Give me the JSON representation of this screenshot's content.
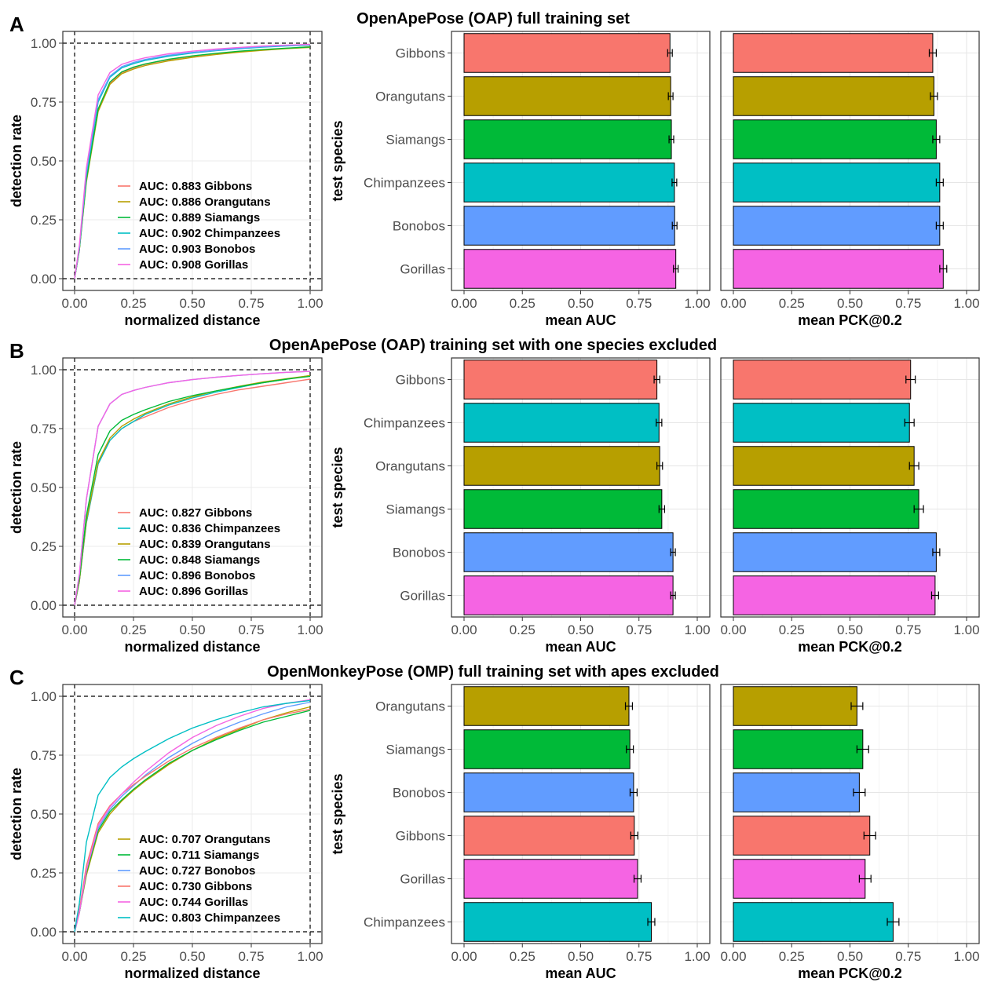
{
  "colors": {
    "Gibbons": "#F8766D",
    "Orangutans": "#B79F00",
    "Siamangs": "#00BA38",
    "Chimpanzees": "#00BFC4",
    "Bonobos": "#619CFF",
    "Gorillas": "#F564E3"
  },
  "chart_data": [
    {
      "panel": "A",
      "title": "OpenApePose (OAP) full training set",
      "type": "line",
      "xlabel": "normalized distance",
      "ylabel": "detection rate",
      "xlim": [
        0,
        1
      ],
      "ylim": [
        0,
        1
      ],
      "xticks": [
        "0.00",
        "0.25",
        "0.50",
        "0.75",
        "1.00"
      ],
      "yticks": [
        "0.00",
        "0.25",
        "0.50",
        "0.75",
        "1.00"
      ],
      "legend": [
        "AUC: 0.883 Gibbons",
        "AUC: 0.886 Orangutans",
        "AUC: 0.889 Siamangs",
        "AUC: 0.902 Chimpanzees",
        "AUC: 0.903 Bonobos",
        "AUC: 0.908 Gorillas"
      ],
      "legend_species": [
        "Gibbons",
        "Orangutans",
        "Siamangs",
        "Chimpanzees",
        "Bonobos",
        "Gorillas"
      ],
      "x": [
        0,
        0.02,
        0.05,
        0.1,
        0.15,
        0.2,
        0.25,
        0.3,
        0.4,
        0.5,
        0.6,
        0.7,
        0.8,
        0.9,
        1.0
      ],
      "series": [
        {
          "name": "Gibbons",
          "values": [
            0,
            0.12,
            0.42,
            0.72,
            0.83,
            0.875,
            0.895,
            0.91,
            0.93,
            0.945,
            0.955,
            0.965,
            0.972,
            0.978,
            0.985
          ]
        },
        {
          "name": "Orangutans",
          "values": [
            0,
            0.12,
            0.41,
            0.71,
            0.825,
            0.87,
            0.89,
            0.905,
            0.925,
            0.94,
            0.952,
            0.962,
            0.97,
            0.977,
            0.982
          ]
        },
        {
          "name": "Siamangs",
          "values": [
            0,
            0.12,
            0.42,
            0.72,
            0.835,
            0.878,
            0.898,
            0.912,
            0.932,
            0.946,
            0.957,
            0.966,
            0.973,
            0.979,
            0.984
          ]
        },
        {
          "name": "Chimpanzees",
          "values": [
            0,
            0.13,
            0.44,
            0.75,
            0.855,
            0.895,
            0.913,
            0.927,
            0.945,
            0.958,
            0.968,
            0.976,
            0.983,
            0.988,
            0.992
          ]
        },
        {
          "name": "Bonobos",
          "values": [
            0,
            0.13,
            0.45,
            0.76,
            0.86,
            0.9,
            0.918,
            0.931,
            0.949,
            0.961,
            0.97,
            0.978,
            0.985,
            0.99,
            0.994
          ]
        },
        {
          "name": "Gorillas",
          "values": [
            0,
            0.14,
            0.47,
            0.78,
            0.875,
            0.91,
            0.926,
            0.938,
            0.955,
            0.966,
            0.975,
            0.982,
            0.988,
            0.992,
            0.995
          ]
        }
      ],
      "bars": {
        "ylabel": "test species",
        "categories": [
          "Gibbons",
          "Orangutans",
          "Siamangs",
          "Chimpanzees",
          "Bonobos",
          "Gorillas"
        ],
        "auc": {
          "xlabel": "mean AUC",
          "values": [
            0.883,
            0.886,
            0.889,
            0.902,
            0.903,
            0.908
          ],
          "errors": [
            0.01,
            0.01,
            0.01,
            0.01,
            0.01,
            0.01
          ]
        },
        "pck": {
          "xlabel": "mean PCK@0.2",
          "values": [
            0.855,
            0.86,
            0.87,
            0.885,
            0.885,
            0.9
          ],
          "errors": [
            0.015,
            0.015,
            0.015,
            0.015,
            0.015,
            0.015
          ]
        },
        "xticks": [
          "0.00",
          "0.25",
          "0.50",
          "0.75",
          "1.00"
        ],
        "xlim": [
          0,
          1
        ]
      }
    },
    {
      "panel": "B",
      "title": "OpenApePose (OAP) training set with one species excluded",
      "type": "line",
      "xlabel": "normalized distance",
      "ylabel": "detection rate",
      "xlim": [
        0,
        1
      ],
      "ylim": [
        0,
        1
      ],
      "xticks": [
        "0.00",
        "0.25",
        "0.50",
        "0.75",
        "1.00"
      ],
      "yticks": [
        "0.00",
        "0.25",
        "0.50",
        "0.75",
        "1.00"
      ],
      "legend": [
        "AUC: 0.827 Gibbons",
        "AUC: 0.836 Chimpanzees",
        "AUC: 0.839 Orangutans",
        "AUC: 0.848 Siamangs",
        "AUC: 0.896 Bonobos",
        "AUC: 0.896 Gorillas"
      ],
      "legend_species": [
        "Gibbons",
        "Chimpanzees",
        "Orangutans",
        "Siamangs",
        "Bonobos",
        "Gorillas"
      ],
      "x": [
        0,
        0.02,
        0.05,
        0.1,
        0.15,
        0.2,
        0.25,
        0.3,
        0.4,
        0.5,
        0.6,
        0.7,
        0.8,
        0.9,
        1.0
      ],
      "series": [
        {
          "name": "Gibbons",
          "values": [
            0,
            0.1,
            0.35,
            0.6,
            0.7,
            0.75,
            0.78,
            0.8,
            0.84,
            0.87,
            0.895,
            0.915,
            0.93,
            0.945,
            0.96
          ]
        },
        {
          "name": "Chimpanzees",
          "values": [
            0,
            0.1,
            0.35,
            0.6,
            0.7,
            0.75,
            0.78,
            0.81,
            0.85,
            0.88,
            0.905,
            0.925,
            0.945,
            0.96,
            0.975
          ]
        },
        {
          "name": "Orangutans",
          "values": [
            0,
            0.1,
            0.36,
            0.61,
            0.71,
            0.76,
            0.79,
            0.815,
            0.855,
            0.885,
            0.91,
            0.93,
            0.948,
            0.962,
            0.975
          ]
        },
        {
          "name": "Siamangs",
          "values": [
            0,
            0.11,
            0.38,
            0.64,
            0.74,
            0.785,
            0.81,
            0.83,
            0.865,
            0.89,
            0.91,
            0.928,
            0.945,
            0.96,
            0.972
          ]
        },
        {
          "name": "Bonobos",
          "values": [
            0,
            0.13,
            0.45,
            0.76,
            0.855,
            0.895,
            0.912,
            0.925,
            0.945,
            0.958,
            0.968,
            0.976,
            0.983,
            0.989,
            0.993
          ]
        },
        {
          "name": "Gorillas",
          "values": [
            0,
            0.13,
            0.45,
            0.76,
            0.855,
            0.895,
            0.912,
            0.925,
            0.945,
            0.958,
            0.968,
            0.976,
            0.983,
            0.989,
            0.993
          ]
        }
      ],
      "bars": {
        "ylabel": "test species",
        "categories": [
          "Gibbons",
          "Chimpanzees",
          "Orangutans",
          "Siamangs",
          "Bonobos",
          "Gorillas"
        ],
        "auc": {
          "xlabel": "mean AUC",
          "values": [
            0.827,
            0.836,
            0.839,
            0.848,
            0.896,
            0.896
          ],
          "errors": [
            0.012,
            0.012,
            0.012,
            0.012,
            0.01,
            0.01
          ]
        },
        "pck": {
          "xlabel": "mean PCK@0.2",
          "values": [
            0.76,
            0.755,
            0.775,
            0.795,
            0.87,
            0.865
          ],
          "errors": [
            0.02,
            0.02,
            0.02,
            0.02,
            0.015,
            0.015
          ]
        },
        "xticks": [
          "0.00",
          "0.25",
          "0.50",
          "0.75",
          "1.00"
        ],
        "xlim": [
          0,
          1
        ]
      }
    },
    {
      "panel": "C",
      "title": "OpenMonkeyPose (OMP) full training set with apes excluded",
      "type": "line",
      "xlabel": "normalized distance",
      "ylabel": "detection rate",
      "xlim": [
        0,
        1
      ],
      "ylim": [
        0,
        1
      ],
      "xticks": [
        "0.00",
        "0.25",
        "0.50",
        "0.75",
        "1.00"
      ],
      "yticks": [
        "0.00",
        "0.25",
        "0.50",
        "0.75",
        "1.00"
      ],
      "legend": [
        "AUC: 0.707 Orangutans",
        "AUC: 0.711 Siamangs",
        "AUC: 0.727 Bonobos",
        "AUC: 0.730 Gibbons",
        "AUC: 0.744 Gorillas",
        "AUC: 0.803 Chimpanzees"
      ],
      "legend_species": [
        "Orangutans",
        "Siamangs",
        "Bonobos",
        "Gibbons",
        "Gorillas",
        "Chimpanzees"
      ],
      "x": [
        0,
        0.02,
        0.05,
        0.1,
        0.15,
        0.2,
        0.25,
        0.3,
        0.4,
        0.5,
        0.6,
        0.7,
        0.8,
        0.9,
        1.0
      ],
      "series": [
        {
          "name": "Orangutans",
          "values": [
            0,
            0.08,
            0.24,
            0.42,
            0.5,
            0.555,
            0.6,
            0.64,
            0.71,
            0.77,
            0.82,
            0.86,
            0.9,
            0.93,
            0.955
          ]
        },
        {
          "name": "Siamangs",
          "values": [
            0,
            0.08,
            0.25,
            0.43,
            0.51,
            0.56,
            0.605,
            0.645,
            0.715,
            0.77,
            0.815,
            0.855,
            0.89,
            0.915,
            0.94
          ]
        },
        {
          "name": "Bonobos",
          "values": [
            0,
            0.08,
            0.26,
            0.44,
            0.52,
            0.575,
            0.62,
            0.665,
            0.74,
            0.8,
            0.85,
            0.89,
            0.925,
            0.955,
            0.975
          ]
        },
        {
          "name": "Gibbons",
          "values": [
            0,
            0.09,
            0.28,
            0.46,
            0.535,
            0.585,
            0.625,
            0.66,
            0.725,
            0.78,
            0.825,
            0.865,
            0.9,
            0.925,
            0.945
          ]
        },
        {
          "name": "Gorillas",
          "values": [
            0,
            0.08,
            0.26,
            0.45,
            0.53,
            0.585,
            0.635,
            0.68,
            0.76,
            0.825,
            0.875,
            0.915,
            0.948,
            0.97,
            0.985
          ]
        },
        {
          "name": "Chimpanzees",
          "values": [
            0,
            0.12,
            0.38,
            0.58,
            0.655,
            0.7,
            0.735,
            0.765,
            0.82,
            0.865,
            0.9,
            0.93,
            0.955,
            0.97,
            0.982
          ]
        }
      ],
      "bars": {
        "ylabel": "test species",
        "categories": [
          "Orangutans",
          "Siamangs",
          "Bonobos",
          "Gibbons",
          "Gorillas",
          "Chimpanzees"
        ],
        "auc": {
          "xlabel": "mean AUC",
          "values": [
            0.707,
            0.711,
            0.727,
            0.73,
            0.744,
            0.803
          ],
          "errors": [
            0.015,
            0.015,
            0.015,
            0.015,
            0.015,
            0.015
          ]
        },
        "pck": {
          "xlabel": "mean PCK@0.2",
          "values": [
            0.53,
            0.555,
            0.54,
            0.585,
            0.565,
            0.685
          ],
          "errors": [
            0.025,
            0.025,
            0.025,
            0.025,
            0.025,
            0.025
          ]
        },
        "xticks": [
          "0.00",
          "0.25",
          "0.50",
          "0.75",
          "1.00"
        ],
        "xlim": [
          0,
          1
        ]
      }
    }
  ]
}
